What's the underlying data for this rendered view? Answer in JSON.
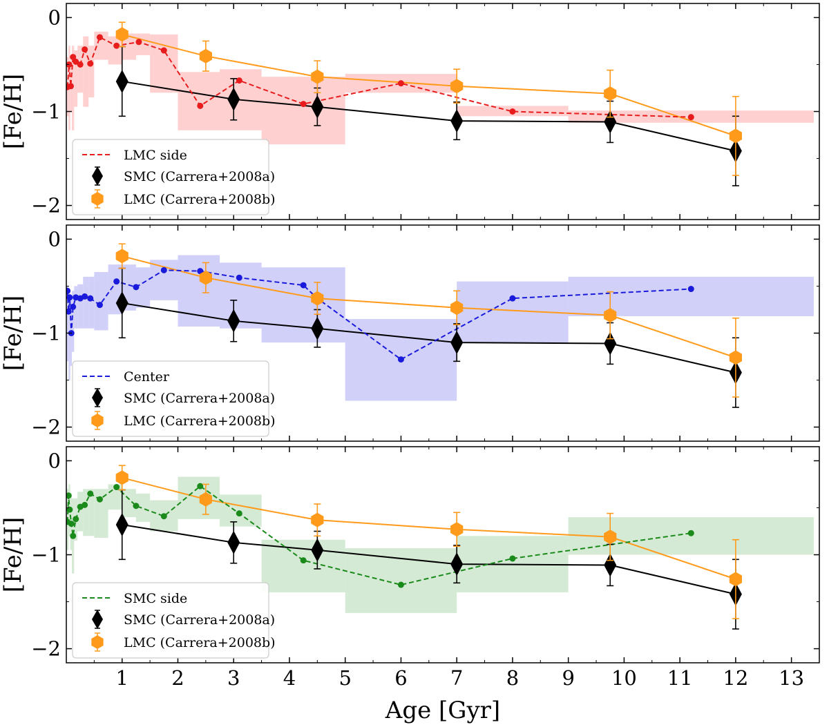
{
  "chart_data": {
    "type": "line",
    "xlabel": "Age [Gyr]",
    "ylabel": "[Fe/H]",
    "xlim": [
      0,
      13.5
    ],
    "ylim": [
      -2.15,
      0.15
    ],
    "xticks": [
      1,
      2,
      3,
      4,
      5,
      6,
      7,
      8,
      9,
      10,
      11,
      12,
      13
    ],
    "yticks": [
      0,
      -1,
      -2
    ],
    "reference_series": [
      {
        "name": "SMC (Carrera+2008a)",
        "color": "#000000",
        "marker": "diamond",
        "x": [
          1,
          3,
          4.5,
          7,
          9.75,
          12
        ],
        "y": [
          -0.68,
          -0.87,
          -0.95,
          -1.1,
          -1.11,
          -1.42
        ],
        "err": [
          0.37,
          0.22,
          0.2,
          0.2,
          0.22,
          0.37
        ]
      },
      {
        "name": "LMC (Carrera+2008b)",
        "color": "#ff9a1a",
        "marker": "hexagon",
        "x": [
          1,
          2.5,
          4.5,
          7,
          9.75,
          12
        ],
        "y": [
          -0.18,
          -0.41,
          -0.63,
          -0.73,
          -0.81,
          -1.26
        ],
        "err": [
          0.13,
          0.16,
          0.17,
          0.18,
          0.25,
          0.42
        ]
      }
    ],
    "panels": [
      {
        "name": "LMC side",
        "color": "#e81c1c",
        "band_color": "#ffc8c8",
        "x": [
          0.02,
          0.05,
          0.08,
          0.12,
          0.17,
          0.25,
          0.33,
          0.43,
          0.6,
          0.9,
          1.3,
          1.75,
          2.4,
          3.1,
          4.25,
          6.0,
          8.0,
          11.2
        ],
        "y": [
          -0.74,
          -0.5,
          -0.73,
          -0.42,
          -0.47,
          -0.5,
          -0.34,
          -0.49,
          -0.21,
          -0.3,
          -0.26,
          -0.35,
          -0.94,
          -0.67,
          -0.92,
          -0.7,
          -1.0,
          -1.06
        ],
        "bands": [
          {
            "x0": 0.0,
            "x1": 0.04,
            "lo": -1.05,
            "hi": -0.42
          },
          {
            "x0": 0.04,
            "x1": 0.07,
            "lo": -1.2,
            "hi": -0.3
          },
          {
            "x0": 0.07,
            "x1": 0.1,
            "lo": -1.0,
            "hi": -0.45
          },
          {
            "x0": 0.1,
            "x1": 0.14,
            "lo": -1.2,
            "hi": -0.3
          },
          {
            "x0": 0.14,
            "x1": 0.2,
            "lo": -0.95,
            "hi": -0.35
          },
          {
            "x0": 0.2,
            "x1": 0.3,
            "lo": -0.8,
            "hi": -0.3
          },
          {
            "x0": 0.3,
            "x1": 0.4,
            "lo": -0.95,
            "hi": -0.2
          },
          {
            "x0": 0.4,
            "x1": 0.5,
            "lo": -0.85,
            "hi": -0.3
          },
          {
            "x0": 0.5,
            "x1": 0.75,
            "lo": -0.45,
            "hi": -0.15
          },
          {
            "x0": 0.75,
            "x1": 1.0,
            "lo": -0.5,
            "hi": -0.2
          },
          {
            "x0": 1.0,
            "x1": 1.25,
            "lo": -0.45,
            "hi": -0.17
          },
          {
            "x0": 1.25,
            "x1": 1.5,
            "lo": -0.4,
            "hi": -0.17
          },
          {
            "x0": 1.5,
            "x1": 2.0,
            "lo": -0.8,
            "hi": -0.18
          },
          {
            "x0": 2.0,
            "x1": 2.75,
            "lo": -1.2,
            "hi": -0.58
          },
          {
            "x0": 2.75,
            "x1": 3.5,
            "lo": -1.2,
            "hi": -0.55
          },
          {
            "x0": 3.5,
            "x1": 5.0,
            "lo": -1.35,
            "hi": -0.63
          },
          {
            "x0": 5.0,
            "x1": 7.0,
            "lo": -0.8,
            "hi": -0.6
          },
          {
            "x0": 7.0,
            "x1": 9.0,
            "lo": -1.05,
            "hi": -0.94
          },
          {
            "x0": 9.0,
            "x1": 13.4,
            "lo": -1.12,
            "hi": -0.99
          }
        ],
        "x_ticklabels_visible": false
      },
      {
        "name": "Center",
        "color": "#1a1adc",
        "band_color": "#c8c8f8",
        "x": [
          0.02,
          0.04,
          0.06,
          0.09,
          0.12,
          0.17,
          0.25,
          0.33,
          0.43,
          0.6,
          0.9,
          1.25,
          1.75,
          2.4,
          3.1,
          4.25,
          4.5,
          6.0,
          8.0,
          11.2
        ],
        "y": [
          -0.55,
          -0.77,
          -0.62,
          -1.0,
          -0.72,
          -0.62,
          -0.63,
          -0.61,
          -0.63,
          -0.7,
          -0.45,
          -0.51,
          -0.33,
          -0.34,
          -0.41,
          -0.49,
          -0.63,
          -1.28,
          -0.63,
          -0.53
        ],
        "bands": [
          {
            "x0": 0.0,
            "x1": 0.04,
            "lo": -1.3,
            "hi": -0.5
          },
          {
            "x0": 0.04,
            "x1": 0.07,
            "lo": -1.5,
            "hi": -0.55
          },
          {
            "x0": 0.07,
            "x1": 0.1,
            "lo": -1.35,
            "hi": -0.6
          },
          {
            "x0": 0.1,
            "x1": 0.14,
            "lo": -1.2,
            "hi": -0.55
          },
          {
            "x0": 0.14,
            "x1": 0.2,
            "lo": -0.95,
            "hi": -0.5
          },
          {
            "x0": 0.2,
            "x1": 0.3,
            "lo": -0.95,
            "hi": -0.48
          },
          {
            "x0": 0.3,
            "x1": 0.4,
            "lo": -0.95,
            "hi": -0.4
          },
          {
            "x0": 0.4,
            "x1": 0.5,
            "lo": -0.95,
            "hi": -0.4
          },
          {
            "x0": 0.5,
            "x1": 0.75,
            "lo": -0.97,
            "hi": -0.35
          },
          {
            "x0": 0.75,
            "x1": 1.0,
            "lo": -0.8,
            "hi": -0.27
          },
          {
            "x0": 1.0,
            "x1": 1.25,
            "lo": -0.76,
            "hi": -0.27
          },
          {
            "x0": 1.25,
            "x1": 1.5,
            "lo": -0.73,
            "hi": -0.3
          },
          {
            "x0": 1.5,
            "x1": 2.0,
            "lo": -0.65,
            "hi": -0.22
          },
          {
            "x0": 2.0,
            "x1": 2.75,
            "lo": -0.93,
            "hi": -0.17
          },
          {
            "x0": 2.75,
            "x1": 3.5,
            "lo": -0.95,
            "hi": -0.25
          },
          {
            "x0": 3.5,
            "x1": 5.0,
            "lo": -1.1,
            "hi": -0.3
          },
          {
            "x0": 5.0,
            "x1": 7.0,
            "lo": -1.72,
            "hi": -0.85
          },
          {
            "x0": 7.0,
            "x1": 9.0,
            "lo": -1.1,
            "hi": -0.45
          },
          {
            "x0": 9.0,
            "x1": 13.4,
            "lo": -0.82,
            "hi": -0.4
          }
        ],
        "x_ticklabels_visible": false
      },
      {
        "name": "SMC side",
        "color": "#1a8a1a",
        "band_color": "#cce6cc",
        "x": [
          0.02,
          0.04,
          0.06,
          0.09,
          0.12,
          0.17,
          0.25,
          0.33,
          0.43,
          0.6,
          0.9,
          1.25,
          1.75,
          2.4,
          3.1,
          4.25,
          6.0,
          8.0,
          11.2
        ],
        "y": [
          -0.65,
          -0.37,
          -0.52,
          -0.67,
          -0.8,
          -0.62,
          -0.49,
          -0.47,
          -0.35,
          -0.41,
          -0.28,
          -0.48,
          -0.59,
          -0.27,
          -0.56,
          -1.06,
          -1.32,
          -1.04,
          -0.77
        ],
        "bands": [
          {
            "x0": 0.0,
            "x1": 0.04,
            "lo": -0.95,
            "hi": -0.3
          },
          {
            "x0": 0.04,
            "x1": 0.07,
            "lo": -0.8,
            "hi": -0.25
          },
          {
            "x0": 0.07,
            "x1": 0.1,
            "lo": -0.95,
            "hi": -0.35
          },
          {
            "x0": 0.1,
            "x1": 0.14,
            "lo": -1.2,
            "hi": -0.4
          },
          {
            "x0": 0.14,
            "x1": 0.2,
            "lo": -0.85,
            "hi": -0.4
          },
          {
            "x0": 0.2,
            "x1": 0.3,
            "lo": -0.75,
            "hi": -0.33
          },
          {
            "x0": 0.3,
            "x1": 0.4,
            "lo": -0.8,
            "hi": -0.3
          },
          {
            "x0": 0.4,
            "x1": 0.5,
            "lo": -0.8,
            "hi": -0.3
          },
          {
            "x0": 0.5,
            "x1": 0.75,
            "lo": -0.82,
            "hi": -0.3
          },
          {
            "x0": 0.75,
            "x1": 1.0,
            "lo": -0.52,
            "hi": -0.25
          },
          {
            "x0": 1.0,
            "x1": 1.25,
            "lo": -0.6,
            "hi": -0.3
          },
          {
            "x0": 1.25,
            "x1": 1.5,
            "lo": -0.65,
            "hi": -0.35
          },
          {
            "x0": 1.5,
            "x1": 2.0,
            "lo": -0.75,
            "hi": -0.42
          },
          {
            "x0": 2.0,
            "x1": 2.75,
            "lo": -0.62,
            "hi": -0.17
          },
          {
            "x0": 2.75,
            "x1": 3.5,
            "lo": -0.7,
            "hi": -0.36
          },
          {
            "x0": 3.5,
            "x1": 5.0,
            "lo": -1.4,
            "hi": -0.84
          },
          {
            "x0": 5.0,
            "x1": 7.0,
            "lo": -1.62,
            "hi": -0.93
          },
          {
            "x0": 7.0,
            "x1": 9.0,
            "lo": -1.4,
            "hi": -0.8
          },
          {
            "x0": 9.0,
            "x1": 13.4,
            "lo": -1.0,
            "hi": -0.6
          }
        ],
        "x_ticklabels_visible": true
      }
    ]
  }
}
